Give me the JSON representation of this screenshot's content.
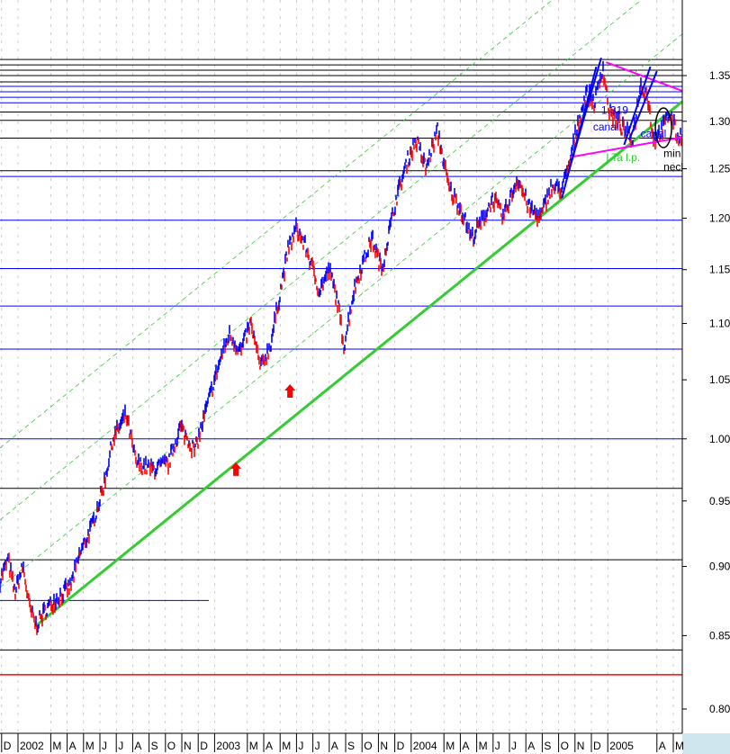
{
  "chart_data": {
    "type": "line",
    "title": "",
    "xlabel": "",
    "ylabel": "",
    "y_scale": "log",
    "ylim": [
      0.78,
      1.4
    ],
    "y_ticks": [
      "0.80",
      "0.85",
      "0.90",
      "0.95",
      "1.00",
      "1.05",
      "1.10",
      "1.15",
      "1.20",
      "1.25",
      "1.30",
      "1.35"
    ],
    "x_ticks": [
      {
        "label": "D",
        "month": -1
      },
      {
        "label": "2002",
        "month": 0
      },
      {
        "label": "M",
        "month": 2
      },
      {
        "label": "A",
        "month": 3
      },
      {
        "label": "M",
        "month": 4
      },
      {
        "label": "J",
        "month": 5
      },
      {
        "label": "J",
        "month": 6
      },
      {
        "label": "A",
        "month": 7
      },
      {
        "label": "S",
        "month": 8
      },
      {
        "label": "O",
        "month": 9
      },
      {
        "label": "N",
        "month": 10
      },
      {
        "label": "D",
        "month": 11
      },
      {
        "label": "2003",
        "month": 12
      },
      {
        "label": "M",
        "month": 14
      },
      {
        "label": "A",
        "month": 15
      },
      {
        "label": "M",
        "month": 16
      },
      {
        "label": "J",
        "month": 17
      },
      {
        "label": "J",
        "month": 18
      },
      {
        "label": "A",
        "month": 19
      },
      {
        "label": "S",
        "month": 20
      },
      {
        "label": "O",
        "month": 21
      },
      {
        "label": "N",
        "month": 22
      },
      {
        "label": "D",
        "month": 23
      },
      {
        "label": "2004",
        "month": 24
      },
      {
        "label": "M",
        "month": 26
      },
      {
        "label": "A",
        "month": 27
      },
      {
        "label": "M",
        "month": 28
      },
      {
        "label": "J",
        "month": 29
      },
      {
        "label": "J",
        "month": 30
      },
      {
        "label": "A",
        "month": 31
      },
      {
        "label": "S",
        "month": 32
      },
      {
        "label": "O",
        "month": 33
      },
      {
        "label": "N",
        "month": 34
      },
      {
        "label": "D",
        "month": 35
      },
      {
        "label": "2005",
        "month": 36
      },
      {
        "label": "A",
        "month": 39
      },
      {
        "label": "M",
        "month": 40
      }
    ],
    "price_path": [
      [
        -1.1,
        0.89
      ],
      [
        -0.6,
        0.905
      ],
      [
        -0.2,
        0.88
      ],
      [
        0.3,
        0.9
      ],
      [
        0.7,
        0.87
      ],
      [
        1.1,
        0.857
      ],
      [
        1.8,
        0.87
      ],
      [
        2.5,
        0.878
      ],
      [
        3.2,
        0.885
      ],
      [
        3.8,
        0.91
      ],
      [
        4.5,
        0.93
      ],
      [
        5.2,
        0.96
      ],
      [
        5.8,
        1.0
      ],
      [
        6.6,
        1.02
      ],
      [
        7.2,
        0.98
      ],
      [
        8.2,
        0.975
      ],
      [
        9.2,
        0.98
      ],
      [
        9.9,
        1.01
      ],
      [
        10.8,
        0.99
      ],
      [
        11.6,
        1.03
      ],
      [
        12.4,
        1.07
      ],
      [
        12.9,
        1.09
      ],
      [
        13.6,
        1.075
      ],
      [
        14.2,
        1.1
      ],
      [
        14.8,
        1.06
      ],
      [
        15.4,
        1.08
      ],
      [
        15.9,
        1.12
      ],
      [
        16.5,
        1.17
      ],
      [
        17.0,
        1.19
      ],
      [
        17.6,
        1.17
      ],
      [
        18.4,
        1.13
      ],
      [
        19.0,
        1.15
      ],
      [
        19.5,
        1.12
      ],
      [
        19.9,
        1.08
      ],
      [
        20.5,
        1.13
      ],
      [
        20.9,
        1.15
      ],
      [
        21.6,
        1.18
      ],
      [
        22.2,
        1.15
      ],
      [
        22.7,
        1.19
      ],
      [
        23.1,
        1.22
      ],
      [
        23.8,
        1.26
      ],
      [
        24.3,
        1.28
      ],
      [
        24.9,
        1.25
      ],
      [
        25.6,
        1.29
      ],
      [
        26.3,
        1.23
      ],
      [
        27.0,
        1.21
      ],
      [
        27.7,
        1.18
      ],
      [
        28.4,
        1.2
      ],
      [
        29.0,
        1.22
      ],
      [
        29.6,
        1.2
      ],
      [
        30.5,
        1.24
      ],
      [
        31.2,
        1.21
      ],
      [
        31.9,
        1.2
      ],
      [
        32.5,
        1.23
      ],
      [
        33.2,
        1.23
      ],
      [
        33.6,
        1.25
      ],
      [
        34.2,
        1.3
      ],
      [
        34.7,
        1.33
      ],
      [
        35.2,
        1.32
      ],
      [
        35.7,
        1.36
      ],
      [
        36.1,
        1.31
      ],
      [
        36.6,
        1.3
      ],
      [
        37.0,
        1.29
      ],
      [
        37.5,
        1.28
      ],
      [
        38.0,
        1.34
      ],
      [
        38.4,
        1.33
      ],
      [
        38.8,
        1.28
      ],
      [
        39.3,
        1.29
      ],
      [
        39.8,
        1.31
      ],
      [
        40.3,
        1.28
      ],
      [
        40.6,
        1.29
      ]
    ],
    "horizontal_levels": {
      "black": [
        1.368,
        1.362,
        1.356,
        1.35,
        1.343,
        1.31,
        1.301,
        1.282,
        1.248,
        0.96,
        0.905,
        0.84
      ],
      "blue": [
        1.338,
        1.332,
        1.326,
        1.32,
        1.242,
        1.198,
        1.151,
        1.116,
        1.077,
        1.0
      ],
      "blue_short": 0.875,
      "red": 0.823
    },
    "trendlines": [
      {
        "kind": "support",
        "color": "#33cc33",
        "from": [
          1.1,
          0.857
        ],
        "to": [
          40.8,
          1.325
        ]
      }
    ],
    "annotations": [
      {
        "text": "canal",
        "month": 35.1,
        "price": 1.29,
        "color": "#0000ff"
      },
      {
        "text": "canal",
        "month": 38.0,
        "price": 1.283,
        "color": "#0000ff"
      },
      {
        "text": "LTa l.p.",
        "month": 35.9,
        "price": 1.258,
        "color": "#33cc33"
      },
      {
        "text": "1.319",
        "month": 35.6,
        "price": 1.308,
        "color": "#0000ff"
      },
      {
        "text": "min",
        "month": 39.4,
        "price": 1.262,
        "color": "#000000"
      },
      {
        "text": "neck",
        "month": 39.4,
        "price": 1.248,
        "color": "#000000"
      }
    ],
    "arrow_markers": [
      [
        13.3,
        0.975
      ],
      [
        16.6,
        1.04
      ]
    ],
    "colors": {
      "up": "#0000ff",
      "down": "#ff0000",
      "trend": "#33cc33",
      "channel": "#33cc33",
      "pattern": "#ff00ff"
    }
  }
}
